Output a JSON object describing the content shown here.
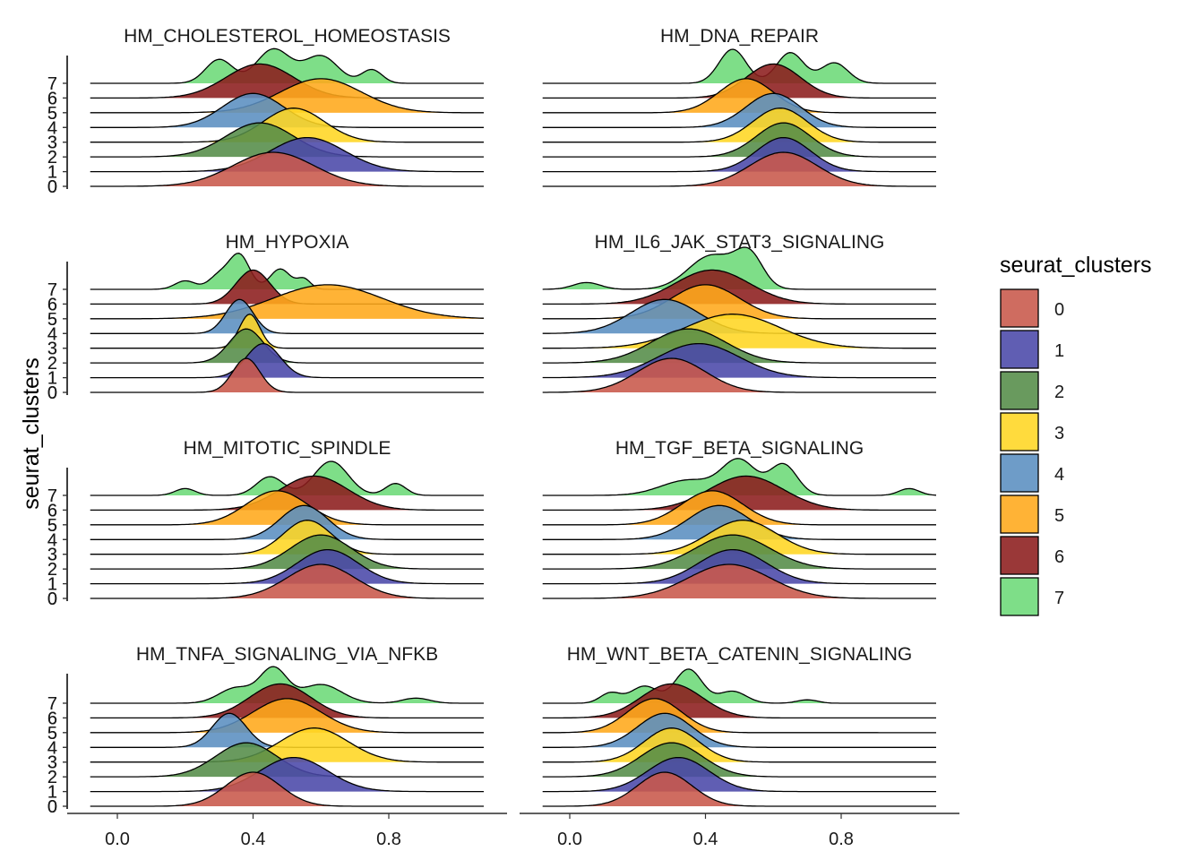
{
  "chart_data": {
    "type": "ridgeline",
    "y_axis_title": "seurat_clusters",
    "x_ticks": [
      "0.0",
      "0.4",
      "0.8"
    ],
    "xlim": [
      -0.08,
      1.08
    ],
    "legend": {
      "title": "seurat_clusters",
      "position": "right",
      "items": [
        {
          "label": "0",
          "color": "#C8584A"
        },
        {
          "label": "1",
          "color": "#4A48A8"
        },
        {
          "label": "2",
          "color": "#548C48"
        },
        {
          "label": "3",
          "color": "#FFD622"
        },
        {
          "label": "4",
          "color": "#5A8EC0"
        },
        {
          "label": "5",
          "color": "#FFA81A"
        },
        {
          "label": "6",
          "color": "#8C1C1C"
        },
        {
          "label": "7",
          "color": "#6CDA78"
        }
      ]
    },
    "facets": [
      {
        "title": "HM_CHOLESTEROL_HOMEOSTASIS",
        "clusters": [
          {
            "cluster": "0",
            "peaks": [
              [
                0.46,
                0.12,
                1
              ]
            ]
          },
          {
            "cluster": "1",
            "peaks": [
              [
                0.56,
                0.11,
                1
              ]
            ]
          },
          {
            "cluster": "2",
            "peaks": [
              [
                0.42,
                0.1,
                1
              ]
            ]
          },
          {
            "cluster": "3",
            "peaks": [
              [
                0.52,
                0.09,
                1
              ]
            ]
          },
          {
            "cluster": "4",
            "peaks": [
              [
                0.4,
                0.09,
                1
              ]
            ]
          },
          {
            "cluster": "5",
            "peaks": [
              [
                0.6,
                0.12,
                1
              ]
            ]
          },
          {
            "cluster": "6",
            "peaks": [
              [
                0.42,
                0.1,
                1
              ]
            ]
          },
          {
            "cluster": "7",
            "peaks": [
              [
                0.3,
                0.04,
                0.7
              ],
              [
                0.46,
                0.05,
                1
              ],
              [
                0.6,
                0.05,
                0.8
              ],
              [
                0.75,
                0.03,
                0.4
              ]
            ]
          }
        ]
      },
      {
        "title": "HM_DNA_REPAIR",
        "clusters": [
          {
            "cluster": "0",
            "peaks": [
              [
                0.63,
                0.1,
                1
              ]
            ]
          },
          {
            "cluster": "1",
            "peaks": [
              [
                0.63,
                0.08,
                1
              ]
            ]
          },
          {
            "cluster": "2",
            "peaks": [
              [
                0.63,
                0.08,
                1
              ]
            ]
          },
          {
            "cluster": "3",
            "peaks": [
              [
                0.62,
                0.08,
                1
              ]
            ]
          },
          {
            "cluster": "4",
            "peaks": [
              [
                0.6,
                0.08,
                1
              ]
            ]
          },
          {
            "cluster": "5",
            "peaks": [
              [
                0.52,
                0.08,
                1
              ]
            ]
          },
          {
            "cluster": "6",
            "peaks": [
              [
                0.6,
                0.08,
                1
              ]
            ]
          },
          {
            "cluster": "7",
            "peaks": [
              [
                0.48,
                0.04,
                1
              ],
              [
                0.65,
                0.04,
                0.9
              ],
              [
                0.78,
                0.04,
                0.6
              ]
            ]
          }
        ]
      },
      {
        "title": "HM_HYPOXIA",
        "clusters": [
          {
            "cluster": "0",
            "peaks": [
              [
                0.38,
                0.04,
                1
              ]
            ]
          },
          {
            "cluster": "1",
            "peaks": [
              [
                0.43,
                0.05,
                1
              ]
            ]
          },
          {
            "cluster": "2",
            "peaks": [
              [
                0.38,
                0.05,
                1
              ]
            ]
          },
          {
            "cluster": "3",
            "peaks": [
              [
                0.39,
                0.03,
                1
              ]
            ]
          },
          {
            "cluster": "4",
            "peaks": [
              [
                0.36,
                0.04,
                1
              ]
            ]
          },
          {
            "cluster": "5",
            "peaks": [
              [
                0.62,
                0.16,
                1
              ]
            ]
          },
          {
            "cluster": "6",
            "peaks": [
              [
                0.4,
                0.05,
                1
              ]
            ]
          },
          {
            "cluster": "7",
            "peaks": [
              [
                0.2,
                0.03,
                0.25
              ],
              [
                0.3,
                0.03,
                0.4
              ],
              [
                0.36,
                0.03,
                1
              ],
              [
                0.48,
                0.03,
                0.6
              ],
              [
                0.55,
                0.02,
                0.3
              ]
            ]
          }
        ]
      },
      {
        "title": "HM_IL6_JAK_STAT3_SIGNALING",
        "clusters": [
          {
            "cluster": "0",
            "peaks": [
              [
                0.3,
                0.1,
                1
              ]
            ]
          },
          {
            "cluster": "1",
            "peaks": [
              [
                0.38,
                0.12,
                1
              ]
            ]
          },
          {
            "cluster": "2",
            "peaks": [
              [
                0.35,
                0.11,
                1
              ]
            ]
          },
          {
            "cluster": "3",
            "peaks": [
              [
                0.48,
                0.14,
                1
              ]
            ]
          },
          {
            "cluster": "4",
            "peaks": [
              [
                0.28,
                0.1,
                1
              ]
            ]
          },
          {
            "cluster": "5",
            "peaks": [
              [
                0.4,
                0.1,
                1
              ]
            ]
          },
          {
            "cluster": "6",
            "peaks": [
              [
                0.42,
                0.11,
                1
              ]
            ]
          },
          {
            "cluster": "7",
            "peaks": [
              [
                0.05,
                0.04,
                0.2
              ],
              [
                0.42,
                0.07,
                1
              ],
              [
                0.53,
                0.04,
                0.9
              ]
            ]
          }
        ]
      },
      {
        "title": "HM_MITOTIC_SPINDLE",
        "clusters": [
          {
            "cluster": "0",
            "peaks": [
              [
                0.6,
                0.1,
                1
              ]
            ]
          },
          {
            "cluster": "1",
            "peaks": [
              [
                0.62,
                0.09,
                1
              ]
            ]
          },
          {
            "cluster": "2",
            "peaks": [
              [
                0.6,
                0.09,
                1
              ]
            ]
          },
          {
            "cluster": "3",
            "peaks": [
              [
                0.56,
                0.07,
                1
              ]
            ]
          },
          {
            "cluster": "4",
            "peaks": [
              [
                0.55,
                0.07,
                1
              ]
            ]
          },
          {
            "cluster": "5",
            "peaks": [
              [
                0.47,
                0.09,
                1
              ]
            ]
          },
          {
            "cluster": "6",
            "peaks": [
              [
                0.58,
                0.1,
                1
              ]
            ]
          },
          {
            "cluster": "7",
            "peaks": [
              [
                0.2,
                0.03,
                0.2
              ],
              [
                0.45,
                0.04,
                0.55
              ],
              [
                0.63,
                0.05,
                1
              ],
              [
                0.82,
                0.03,
                0.35
              ]
            ]
          }
        ]
      },
      {
        "title": "HM_TGF_BETA_SIGNALING",
        "clusters": [
          {
            "cluster": "0",
            "peaks": [
              [
                0.47,
                0.12,
                1
              ]
            ]
          },
          {
            "cluster": "1",
            "peaks": [
              [
                0.48,
                0.1,
                1
              ]
            ]
          },
          {
            "cluster": "2",
            "peaks": [
              [
                0.48,
                0.11,
                1
              ]
            ]
          },
          {
            "cluster": "3",
            "peaks": [
              [
                0.51,
                0.1,
                1
              ]
            ]
          },
          {
            "cluster": "4",
            "peaks": [
              [
                0.44,
                0.09,
                1
              ]
            ]
          },
          {
            "cluster": "5",
            "peaks": [
              [
                0.42,
                0.09,
                1
              ]
            ]
          },
          {
            "cluster": "6",
            "peaks": [
              [
                0.52,
                0.11,
                1
              ]
            ]
          },
          {
            "cluster": "7",
            "peaks": [
              [
                0.35,
                0.08,
                0.45
              ],
              [
                0.5,
                0.05,
                1
              ],
              [
                0.63,
                0.04,
                0.9
              ],
              [
                1.0,
                0.03,
                0.2
              ]
            ]
          }
        ]
      },
      {
        "title": "HM_TNFA_SIGNALING_VIA_NFKB",
        "clusters": [
          {
            "cluster": "0",
            "peaks": [
              [
                0.4,
                0.08,
                1
              ]
            ]
          },
          {
            "cluster": "1",
            "peaks": [
              [
                0.52,
                0.1,
                1
              ]
            ]
          },
          {
            "cluster": "2",
            "peaks": [
              [
                0.38,
                0.09,
                1
              ]
            ]
          },
          {
            "cluster": "3",
            "peaks": [
              [
                0.58,
                0.1,
                1
              ]
            ]
          },
          {
            "cluster": "4",
            "peaks": [
              [
                0.33,
                0.05,
                1
              ]
            ]
          },
          {
            "cluster": "5",
            "peaks": [
              [
                0.5,
                0.1,
                1
              ]
            ]
          },
          {
            "cluster": "6",
            "peaks": [
              [
                0.48,
                0.09,
                1
              ]
            ]
          },
          {
            "cluster": "7",
            "peaks": [
              [
                0.35,
                0.05,
                0.45
              ],
              [
                0.46,
                0.04,
                1
              ],
              [
                0.6,
                0.06,
                0.55
              ],
              [
                0.88,
                0.04,
                0.15
              ]
            ]
          }
        ]
      },
      {
        "title": "HM_WNT_BETA_CATENIN_SIGNALING",
        "clusters": [
          {
            "cluster": "0",
            "peaks": [
              [
                0.28,
                0.08,
                1
              ]
            ]
          },
          {
            "cluster": "1",
            "peaks": [
              [
                0.32,
                0.09,
                1
              ]
            ]
          },
          {
            "cluster": "2",
            "peaks": [
              [
                0.3,
                0.09,
                1
              ]
            ]
          },
          {
            "cluster": "3",
            "peaks": [
              [
                0.3,
                0.08,
                1
              ]
            ]
          },
          {
            "cluster": "4",
            "peaks": [
              [
                0.28,
                0.08,
                1
              ]
            ]
          },
          {
            "cluster": "5",
            "peaks": [
              [
                0.25,
                0.08,
                1
              ]
            ]
          },
          {
            "cluster": "6",
            "peaks": [
              [
                0.3,
                0.09,
                1
              ]
            ]
          },
          {
            "cluster": "7",
            "peaks": [
              [
                0.12,
                0.03,
                0.3
              ],
              [
                0.22,
                0.04,
                0.5
              ],
              [
                0.35,
                0.04,
                1
              ],
              [
                0.48,
                0.04,
                0.35
              ],
              [
                0.7,
                0.03,
                0.1
              ]
            ]
          }
        ]
      }
    ]
  }
}
